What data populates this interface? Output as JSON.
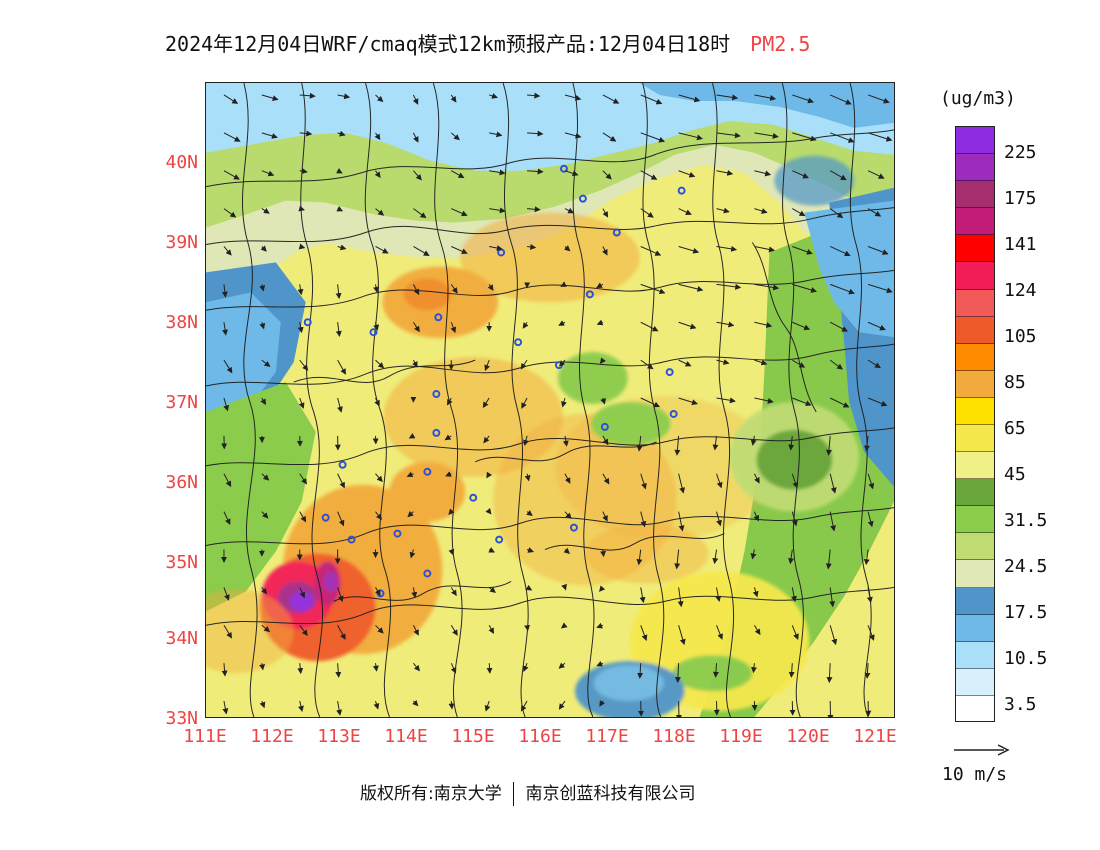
{
  "header": {
    "title_main": "2024年12月04日WRF/cmaq模式12km预报产品:12月04日18时",
    "pollutant": "PM2.5"
  },
  "map": {
    "lat_labels": [
      "40N",
      "39N",
      "38N",
      "37N",
      "36N",
      "35N",
      "34N",
      "33N"
    ],
    "lon_labels": [
      "111E",
      "112E",
      "113E",
      "114E",
      "115E",
      "116E",
      "117E",
      "118E",
      "119E",
      "120E",
      "121E"
    ],
    "colors": {
      "background": "#f0ec7a",
      "outline": "#111111",
      "station": "#2a52d8",
      "ocean_low": "#9fd8f4",
      "ocean_mid": "#7bc7f0",
      "hotspot_high": "#a52c8d",
      "hotspot_core": "#8e2ce0"
    }
  },
  "legend": {
    "unit": "(ug/m3)",
    "labels": [
      "225",
      "175",
      "141",
      "124",
      "105",
      "85",
      "65",
      "45",
      "31.5",
      "24.5",
      "17.5",
      "10.5",
      "3.5"
    ],
    "colors": [
      "#8f2be1",
      "#9d2bbb",
      "#a62d70",
      "#c21b78",
      "#ff0000",
      "#f21d57",
      "#f25a5a",
      "#ef5a2a",
      "#ff8b00",
      "#f2aa3c",
      "#ffe100",
      "#f5e84d",
      "#f0ef88",
      "#6ba63d",
      "#8bcc4d",
      "#bfdc73",
      "#e0e8b5",
      "#4f95c9",
      "#6eb9e7",
      "#a9dff8",
      "#d8f0fb",
      "#ffffff"
    ]
  },
  "wind_scale": {
    "label": "10 m/s"
  },
  "footer": {
    "left": "版权所有:南京大学",
    "right": "南京创蓝科技有限公司"
  }
}
